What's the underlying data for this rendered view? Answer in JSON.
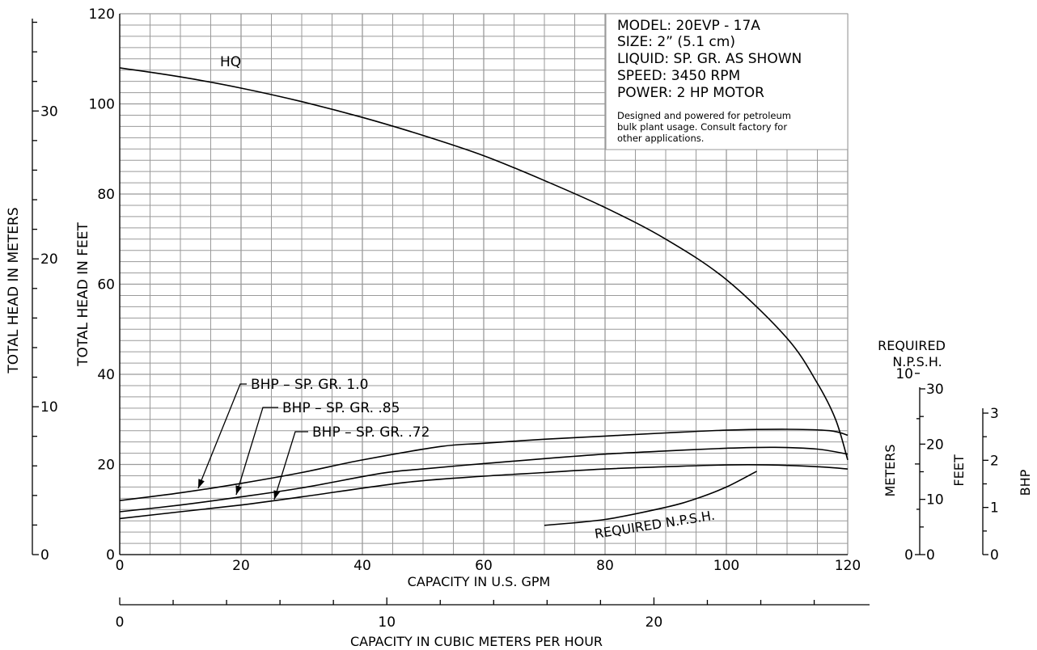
{
  "chart_data": {
    "type": "line",
    "xlabel": "CAPACITY IN U.S. GPM",
    "x2label": "CAPACITY IN CUBIC METERS PER HOUR",
    "ylabel": "TOTAL HEAD IN FEET",
    "y2label": "TOTAL HEAD IN METERS",
    "xlim": [
      0,
      120
    ],
    "ylim": [
      0,
      120
    ],
    "x_ticks": [
      "0",
      "20",
      "40",
      "60",
      "80",
      "100",
      "120"
    ],
    "y_ticks": [
      "0",
      "20",
      "40",
      "60",
      "80",
      "100",
      "120"
    ],
    "x2_ticks": [
      "0",
      "10",
      "20"
    ],
    "y2_ticks": [
      "0",
      "10",
      "20",
      "30"
    ],
    "grid": true,
    "info_box": {
      "lines": [
        "MODEL: 20EVP - 17A",
        "SIZE: 2” (5.1 cm)",
        "LIQUID: SP. GR. AS SHOWN",
        "SPEED: 3450 RPM",
        "POWER: 2 HP MOTOR"
      ],
      "note": [
        "Designed and powered for petroleum",
        "bulk plant usage. Consult factory for",
        "other applications."
      ]
    },
    "series": [
      {
        "name": "HQ",
        "x": [
          0,
          10,
          20,
          30,
          40,
          50,
          60,
          70,
          80,
          90,
          100,
          110,
          115,
          118,
          120
        ],
        "y": [
          108,
          106,
          103.5,
          100.5,
          97,
          93,
          88.5,
          83,
          77,
          70,
          61,
          48,
          38,
          30,
          21
        ]
      },
      {
        "name": "BHP – SP. GR. 1.0",
        "x": [
          0,
          10,
          20,
          30,
          40,
          53,
          60,
          70,
          80,
          90,
          100,
          110,
          117,
          120
        ],
        "y": [
          12,
          13.7,
          15.8,
          18.2,
          21,
          24,
          24.7,
          25.6,
          26.3,
          27,
          27.6,
          27.8,
          27.5,
          26.5
        ]
      },
      {
        "name": "BHP – SP. GR. .85",
        "x": [
          0,
          10,
          20,
          30,
          43,
          50,
          60,
          70,
          80,
          90,
          100,
          108,
          115,
          120
        ],
        "y": [
          9.5,
          11,
          12.8,
          14.8,
          18,
          19,
          20.2,
          21.3,
          22.3,
          23,
          23.6,
          23.8,
          23.4,
          22.3
        ]
      },
      {
        "name": "BHP – SP. GR. .72",
        "x": [
          0,
          10,
          20,
          30,
          47,
          60,
          70,
          80,
          90,
          100,
          107,
          115,
          120
        ],
        "y": [
          8,
          9.5,
          11,
          12.8,
          16,
          17.4,
          18.2,
          19,
          19.5,
          19.9,
          19.9,
          19.5,
          19
        ]
      },
      {
        "name": "REQUIRED N.P.S.H.",
        "x": [
          70,
          80,
          90,
          95,
          100,
          105
        ],
        "y": [
          6.5,
          7.8,
          10.5,
          12.4,
          15,
          18.5
        ]
      }
    ],
    "labels": {
      "hq": "HQ",
      "bhp1": "BHP – SP. GR. 1.0",
      "bhp85": "BHP – SP. GR. .85",
      "bhp72": "BHP – SP. GR. .72",
      "npsh_curve": "REQUIRED N.P.S.H.",
      "npsh_title1": "REQUIRED",
      "npsh_title2": "N.P.S.H.",
      "meters": "METERS",
      "feet": "FEET",
      "bhp": "BHP"
    },
    "npsh_meters_ticks": [
      "0",
      "10"
    ],
    "npsh_feet_ticks": [
      "0",
      "10",
      "20",
      "30"
    ],
    "bhp_ticks": [
      "0",
      "1",
      "2",
      "3"
    ]
  }
}
